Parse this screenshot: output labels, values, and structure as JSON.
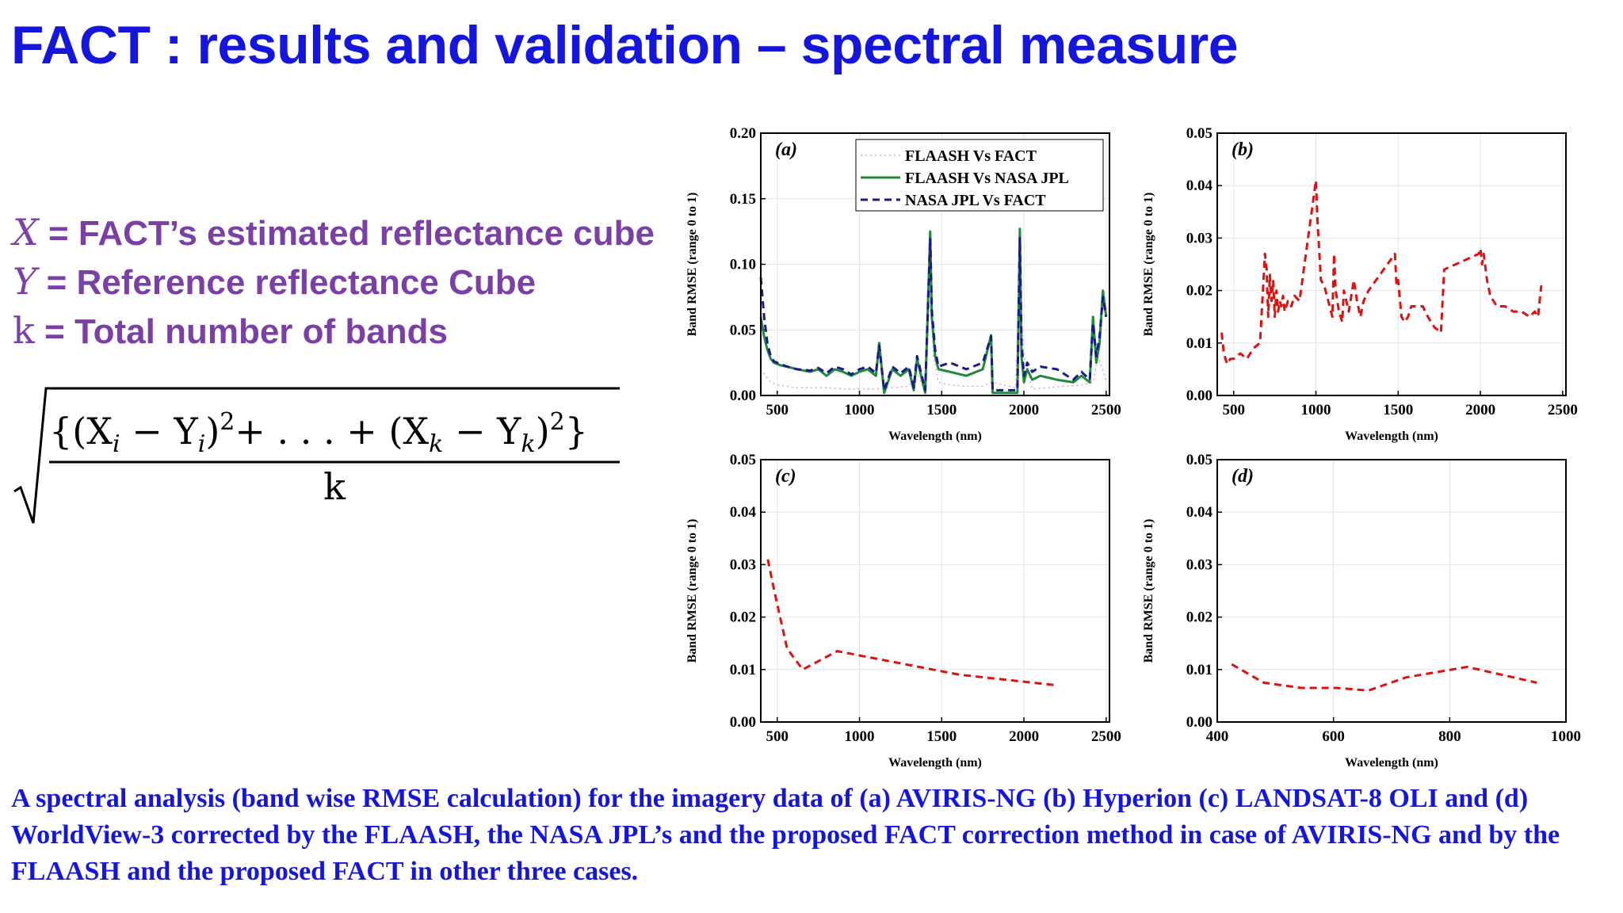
{
  "slide": {
    "title": "FACT : results and validation – spectral measure",
    "definitions": [
      {
        "symbol": "X",
        "text": " = FACT’s estimated reflectance cube"
      },
      {
        "symbol": "Y",
        "text": " = Reference reflectance Cube"
      },
      {
        "symbol": "k",
        "text": " = Total number of bands"
      }
    ],
    "formula": {
      "numerator": "{(X",
      "sub_i": "i",
      "minus": " − Y",
      "close_sq": ")",
      "sup_2": "2",
      "mid": "+  . . . + (X",
      "sub_k": "k",
      "close_sq2": "}",
      "denominator": "k"
    },
    "caption": "A spectral analysis (band wise RMSE calculation) for the imagery data of (a) AVIRIS-NG (b) Hyperion (c) LANDSAT-8 OLI and (d) WorldView-3 corrected by the FLAASH,  the NASA JPL’s and the proposed FACT correction method in case of AVIRIS-NG and by the FLAASH and the proposed FACT in other three cases."
  },
  "colors": {
    "title": "#1515e0",
    "definitions": "#7b3fa8",
    "flaash_vs_fact": "#e0a0d8",
    "flaash_vs_nasa": "#1f8a3a",
    "nasa_vs_fact": "#1a1a8c",
    "red_series": "#e01010"
  },
  "chart_data": [
    {
      "panel": "(a)",
      "type": "line",
      "xlabel": "Wavelength (nm)",
      "ylabel": "Band RMSE (range 0 to 1)",
      "xlim": [
        400,
        2520
      ],
      "ylim": [
        0,
        0.2
      ],
      "xticks": [
        500,
        1000,
        1500,
        2000,
        2500
      ],
      "yticks": [
        0.0,
        0.05,
        0.1,
        0.15,
        0.2
      ],
      "ytick_labels": [
        "0.00",
        "0.05",
        "0.10",
        "0.15",
        "0.20"
      ],
      "grid": true,
      "legend": "top-right",
      "series": [
        {
          "name": "FLAASH Vs FACT",
          "style": "dotted",
          "color": "#e0a0d8",
          "x": [
            400,
            430,
            460,
            500,
            560,
            620,
            700,
            800,
            900,
            1000,
            1100,
            1200,
            1300,
            1350,
            1400,
            1430,
            1450,
            1480,
            1550,
            1650,
            1750,
            1800,
            1950,
            1970,
            2000,
            2050,
            2150,
            2250,
            2350,
            2420,
            2450,
            2480,
            2500
          ],
          "y": [
            0.02,
            0.015,
            0.01,
            0.008,
            0.007,
            0.006,
            0.006,
            0.006,
            0.005,
            0.005,
            0.005,
            0.006,
            0.007,
            0.018,
            0.002,
            0.08,
            0.03,
            0.01,
            0.008,
            0.007,
            0.007,
            0.01,
            0.006,
            0.085,
            0.03,
            0.005,
            0.006,
            0.007,
            0.008,
            0.01,
            0.03,
            0.02,
            0.01
          ]
        },
        {
          "name": "FLAASH Vs NASA JPL",
          "style": "solid",
          "color": "#1f8a3a",
          "x": [
            400,
            420,
            440,
            460,
            480,
            520,
            560,
            620,
            700,
            750,
            800,
            850,
            900,
            950,
            1000,
            1050,
            1100,
            1120,
            1150,
            1200,
            1250,
            1300,
            1330,
            1350,
            1400,
            1430,
            1440,
            1460,
            1480,
            1550,
            1650,
            1750,
            1800,
            1810,
            1960,
            1975,
            1985,
            2000,
            2020,
            2050,
            2100,
            2200,
            2300,
            2350,
            2400,
            2420,
            2440,
            2460,
            2480,
            2500
          ],
          "y": [
            0.06,
            0.045,
            0.035,
            0.028,
            0.025,
            0.023,
            0.022,
            0.02,
            0.018,
            0.02,
            0.015,
            0.02,
            0.018,
            0.015,
            0.018,
            0.02,
            0.015,
            0.04,
            0.002,
            0.02,
            0.015,
            0.02,
            0.004,
            0.028,
            0.002,
            0.125,
            0.06,
            0.03,
            0.02,
            0.018,
            0.015,
            0.02,
            0.046,
            0.002,
            0.002,
            0.127,
            0.03,
            0.01,
            0.02,
            0.012,
            0.015,
            0.012,
            0.01,
            0.015,
            0.01,
            0.06,
            0.025,
            0.04,
            0.08,
            0.06
          ]
        },
        {
          "name": "NASA  JPL Vs FACT",
          "style": "dashed",
          "color": "#1a1a8c",
          "x": [
            400,
            420,
            440,
            460,
            480,
            520,
            560,
            620,
            700,
            750,
            800,
            850,
            900,
            950,
            1000,
            1050,
            1100,
            1120,
            1150,
            1200,
            1250,
            1300,
            1330,
            1350,
            1400,
            1430,
            1440,
            1460,
            1480,
            1550,
            1650,
            1750,
            1800,
            1810,
            1960,
            1975,
            1985,
            2000,
            2020,
            2050,
            2100,
            2200,
            2300,
            2350,
            2400,
            2420,
            2440,
            2460,
            2480,
            2500
          ],
          "y": [
            0.09,
            0.06,
            0.04,
            0.03,
            0.026,
            0.024,
            0.022,
            0.02,
            0.019,
            0.021,
            0.017,
            0.022,
            0.02,
            0.016,
            0.02,
            0.022,
            0.017,
            0.038,
            0.004,
            0.022,
            0.017,
            0.022,
            0.006,
            0.03,
            0.004,
            0.12,
            0.065,
            0.035,
            0.022,
            0.025,
            0.02,
            0.025,
            0.045,
            0.004,
            0.004,
            0.12,
            0.04,
            0.015,
            0.025,
            0.018,
            0.022,
            0.02,
            0.012,
            0.018,
            0.012,
            0.055,
            0.03,
            0.045,
            0.075,
            0.06
          ]
        }
      ]
    },
    {
      "panel": "(b)",
      "type": "line",
      "xlabel": "Wavelength (nm)",
      "ylabel": "Band RMSE (range 0 to 1)",
      "xlim": [
        400,
        2520
      ],
      "ylim": [
        0,
        0.05
      ],
      "xticks": [
        500,
        1000,
        1500,
        2000,
        2500
      ],
      "yticks": [
        0.0,
        0.01,
        0.02,
        0.03,
        0.04,
        0.05
      ],
      "ytick_labels": [
        "0.00",
        "0.01",
        "0.02",
        "0.03",
        "0.04",
        "0.05"
      ],
      "grid": true,
      "series": [
        {
          "style": "dashed",
          "color": "#e01010",
          "x": [
            427,
            440,
            460,
            480,
            500,
            540,
            580,
            620,
            660,
            690,
            700,
            710,
            720,
            730,
            740,
            750,
            760,
            770,
            780,
            790,
            800,
            810,
            830,
            850,
            870,
            900,
            1000,
            1010,
            1030,
            1050,
            1100,
            1110,
            1120,
            1130,
            1140,
            1150,
            1160,
            1170,
            1200,
            1230,
            1250,
            1270,
            1290,
            1320,
            1480,
            1490,
            1500,
            1520,
            1540,
            1560,
            1580,
            1620,
            1650,
            1680,
            1720,
            1760,
            1780,
            1990,
            2000,
            2010,
            2020,
            2040,
            2060,
            2100,
            2150,
            2200,
            2250,
            2300,
            2330,
            2350,
            2370
          ],
          "y": [
            0.012,
            0.008,
            0.006,
            0.007,
            0.007,
            0.008,
            0.007,
            0.009,
            0.01,
            0.027,
            0.024,
            0.015,
            0.023,
            0.018,
            0.022,
            0.015,
            0.02,
            0.016,
            0.018,
            0.017,
            0.019,
            0.016,
            0.018,
            0.017,
            0.019,
            0.018,
            0.041,
            0.033,
            0.022,
            0.021,
            0.015,
            0.027,
            0.02,
            0.018,
            0.016,
            0.015,
            0.014,
            0.02,
            0.016,
            0.022,
            0.018,
            0.015,
            0.018,
            0.02,
            0.027,
            0.021,
            0.022,
            0.015,
            0.014,
            0.015,
            0.017,
            0.017,
            0.017,
            0.015,
            0.013,
            0.012,
            0.024,
            0.027,
            0.028,
            0.025,
            0.027,
            0.022,
            0.019,
            0.017,
            0.017,
            0.016,
            0.016,
            0.015,
            0.016,
            0.015,
            0.021
          ]
        }
      ]
    },
    {
      "panel": "(c)",
      "type": "line",
      "xlabel": "Wavelength (nm)",
      "ylabel": "Band RMSE (range 0 to 1)",
      "xlim": [
        400,
        2520
      ],
      "ylim": [
        0,
        0.05
      ],
      "xticks": [
        500,
        1000,
        1500,
        2000,
        2500
      ],
      "yticks": [
        0.0,
        0.01,
        0.02,
        0.03,
        0.04,
        0.05
      ],
      "ytick_labels": [
        "0.00",
        "0.01",
        "0.02",
        "0.03",
        "0.04",
        "0.05"
      ],
      "grid": true,
      "series": [
        {
          "style": "dashed",
          "color": "#e01010",
          "x": [
            443,
            482,
            560,
            655,
            865,
            1610,
            2200
          ],
          "y": [
            0.031,
            0.025,
            0.014,
            0.01,
            0.0135,
            0.009,
            0.007
          ]
        }
      ]
    },
    {
      "panel": "(d)",
      "type": "line",
      "xlabel": "Wavelength (nm)",
      "ylabel": "Band RMSE (range 0 to 1)",
      "xlim": [
        400,
        1000
      ],
      "ylim": [
        0,
        0.05
      ],
      "xticks": [
        400,
        600,
        800,
        1000
      ],
      "yticks": [
        0.0,
        0.01,
        0.02,
        0.03,
        0.04,
        0.05
      ],
      "ytick_labels": [
        "0.00",
        "0.01",
        "0.02",
        "0.03",
        "0.04",
        "0.05"
      ],
      "grid": true,
      "series": [
        {
          "style": "dashed",
          "color": "#e01010",
          "x": [
            425,
            480,
            545,
            605,
            660,
            725,
            830,
            950
          ],
          "y": [
            0.011,
            0.0075,
            0.0065,
            0.0065,
            0.006,
            0.0085,
            0.0105,
            0.0075
          ]
        }
      ]
    }
  ]
}
